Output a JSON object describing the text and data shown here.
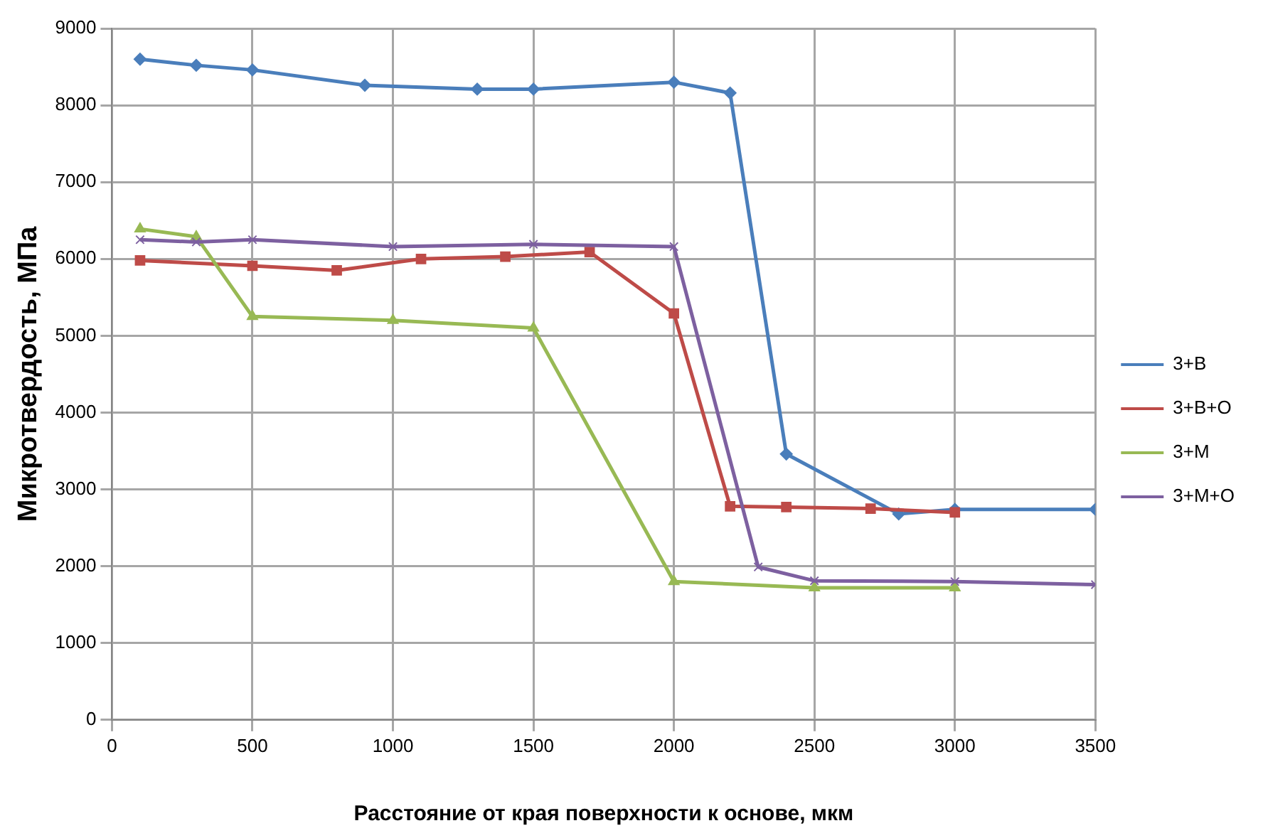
{
  "chart_data": {
    "type": "line",
    "xlabel": "Расстояние от края поверхности к основе, мкм",
    "ylabel": "Микротвердость, МПа",
    "xlim": [
      0,
      3500
    ],
    "xticks": [
      0,
      500,
      1000,
      1500,
      2000,
      2500,
      3000,
      3500
    ],
    "ylim": [
      0,
      9000
    ],
    "yticks": [
      0,
      1000,
      2000,
      3000,
      4000,
      5000,
      6000,
      7000,
      8000,
      9000
    ],
    "grid": true,
    "legend": "right",
    "line_style": "solid",
    "series": [
      {
        "name": "3+В",
        "color": "#4a7ebb",
        "marker": "diamond",
        "x": [
          100,
          300,
          500,
          900,
          1300,
          1500,
          2000,
          2200,
          2400,
          2800,
          3000,
          3500
        ],
        "values": [
          8600,
          8520,
          8460,
          8260,
          8210,
          8210,
          8300,
          8160,
          3460,
          2680,
          2740,
          2740
        ]
      },
      {
        "name": "3+В+О",
        "color": "#be4b48",
        "marker": "square",
        "x": [
          100,
          500,
          800,
          1100,
          1400,
          1700,
          2000,
          2200,
          2400,
          2700,
          3000
        ],
        "values": [
          5980,
          5910,
          5850,
          6000,
          6030,
          6090,
          5290,
          2780,
          2770,
          2750,
          2700
        ]
      },
      {
        "name": "3+М",
        "color": "#98b954",
        "marker": "triangle",
        "x": [
          100,
          300,
          500,
          1000,
          1500,
          2000,
          2500,
          3000
        ],
        "values": [
          6390,
          6290,
          5250,
          5200,
          5100,
          1800,
          1720,
          1720
        ]
      },
      {
        "name": "3+М+О",
        "color": "#7d60a0",
        "marker": "cross",
        "x": [
          100,
          300,
          500,
          1000,
          1500,
          2000,
          2300,
          2500,
          3000,
          3500
        ],
        "values": [
          6250,
          6220,
          6250,
          6160,
          6190,
          6160,
          1990,
          1810,
          1800,
          1760
        ]
      }
    ]
  }
}
